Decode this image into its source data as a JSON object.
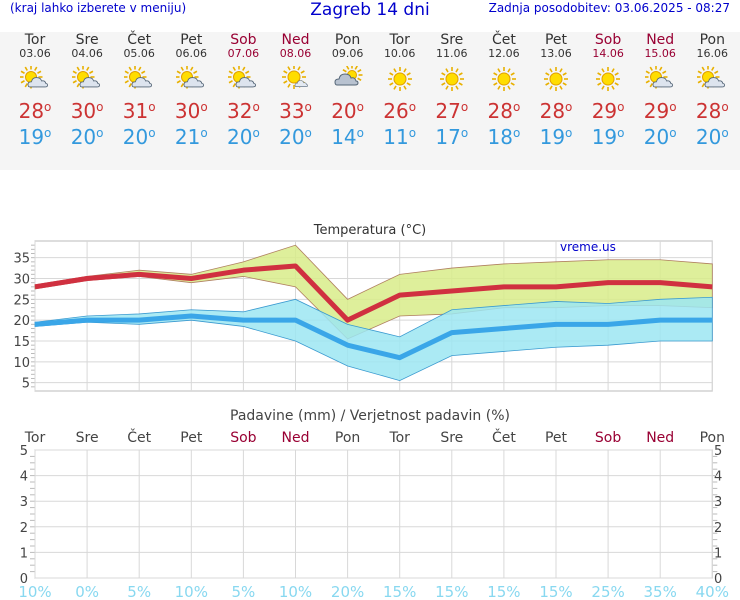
{
  "header": {
    "menu_hint": "(kraj lahko izberete v meniju)",
    "title": "Zagreb 14 dni",
    "updated": "Zadnja posodobitev: 03.06.2025 - 08:27"
  },
  "degree_symbol": "o",
  "days": [
    {
      "name": "Tor",
      "date": "03.06",
      "weekend": false,
      "icon": "sun-cloud-icon",
      "max": "28",
      "min": "19"
    },
    {
      "name": "Sre",
      "date": "04.06",
      "weekend": false,
      "icon": "sun-cloud-icon",
      "max": "30",
      "min": "20"
    },
    {
      "name": "Čet",
      "date": "05.06",
      "weekend": false,
      "icon": "sun-cloud-icon",
      "max": "31",
      "min": "20"
    },
    {
      "name": "Pet",
      "date": "06.06",
      "weekend": false,
      "icon": "sun-cloud-icon",
      "max": "30",
      "min": "21"
    },
    {
      "name": "Sob",
      "date": "07.06",
      "weekend": true,
      "icon": "sun-cloud-icon",
      "max": "32",
      "min": "20"
    },
    {
      "name": "Ned",
      "date": "08.06",
      "weekend": true,
      "icon": "sun-small-cloud-icon",
      "max": "33",
      "min": "20"
    },
    {
      "name": "Pon",
      "date": "09.06",
      "weekend": false,
      "icon": "cloud-sun-icon",
      "max": "20",
      "min": "14"
    },
    {
      "name": "Tor",
      "date": "10.06",
      "weekend": false,
      "icon": "sun-icon",
      "max": "26",
      "min": "11"
    },
    {
      "name": "Sre",
      "date": "11.06",
      "weekend": false,
      "icon": "sun-icon",
      "max": "27",
      "min": "17"
    },
    {
      "name": "Čet",
      "date": "12.06",
      "weekend": false,
      "icon": "sun-icon",
      "max": "28",
      "min": "18"
    },
    {
      "name": "Pet",
      "date": "13.06",
      "weekend": false,
      "icon": "sun-icon",
      "max": "28",
      "min": "19"
    },
    {
      "name": "Sob",
      "date": "14.06",
      "weekend": true,
      "icon": "sun-icon",
      "max": "29",
      "min": "19"
    },
    {
      "name": "Ned",
      "date": "15.06",
      "weekend": true,
      "icon": "sun-cloud-icon",
      "max": "29",
      "min": "20"
    },
    {
      "name": "Pon",
      "date": "16.06",
      "weekend": false,
      "icon": "sun-cloud-icon",
      "max": "28",
      "min": "20"
    }
  ],
  "colors": {
    "max_line": "#d03040",
    "min_line": "#3aa6e8",
    "max_band": "#d8ec8a",
    "min_band": "#9ce6f2",
    "weekend": "#990033",
    "precip_prob": "#88d8f0",
    "title_blue": "#0000cc"
  },
  "chart_data": [
    {
      "type": "line",
      "title": "Temperatura (°C)",
      "watermark": "vreme.us",
      "x": [
        "Tor 03.06",
        "Sre 04.06",
        "Čet 05.06",
        "Pet 06.06",
        "Sob 07.06",
        "Ned 08.06",
        "Pon 09.06",
        "Tor 10.06",
        "Sre 11.06",
        "Čet 12.06",
        "Pet 13.06",
        "Sob 14.06",
        "Ned 15.06",
        "Pon 16.06"
      ],
      "ylim": [
        3,
        39
      ],
      "yticks": [
        5,
        10,
        15,
        20,
        25,
        30,
        35
      ],
      "grid": true,
      "series": [
        {
          "values": [
            28,
            30,
            31,
            30,
            32,
            33,
            20,
            26,
            27,
            28,
            28,
            29,
            29,
            28
          ]
        },
        {
          "values": [
            19,
            20,
            20,
            21,
            20,
            20,
            14,
            11,
            17,
            18,
            19,
            19,
            20,
            20
          ]
        }
      ],
      "bands": [
        {
          "upper": [
            28.5,
            30.5,
            32,
            31,
            34,
            38,
            25,
            31,
            32.5,
            33.5,
            34,
            34.5,
            34.5,
            33.5
          ],
          "lower": [
            27.5,
            29.5,
            30.5,
            29,
            30.5,
            28,
            15.5,
            21,
            21.5,
            23,
            23,
            23.5,
            23.5,
            23
          ]
        },
        {
          "upper": [
            19.5,
            21,
            21.5,
            22.5,
            22,
            25,
            19,
            16,
            22.5,
            23.5,
            24.5,
            24,
            25,
            25.5
          ],
          "lower": [
            18.5,
            19.5,
            19,
            20,
            18.5,
            15,
            9,
            5.5,
            11.5,
            12.5,
            13.5,
            14,
            15,
            15
          ]
        }
      ]
    },
    {
      "type": "bar",
      "title": "Padavine (mm) / Verjetnost padavin (%)",
      "categories": [
        "Tor",
        "Sre",
        "Čet",
        "Pet",
        "Sob",
        "Ned",
        "Pon",
        "Tor",
        "Sre",
        "Čet",
        "Pet",
        "Sob",
        "Ned",
        "Pon"
      ],
      "weekend": [
        false,
        false,
        false,
        false,
        true,
        true,
        false,
        false,
        false,
        false,
        false,
        true,
        true,
        false
      ],
      "ylim": [
        0,
        5
      ],
      "yticks": [
        0,
        1,
        2,
        3,
        4,
        5
      ],
      "values": [
        0,
        0,
        0,
        0,
        0,
        0,
        0,
        0,
        0,
        0,
        0,
        0,
        0,
        0
      ],
      "probability_labels": [
        "10%",
        "0%",
        "5%",
        "10%",
        "5%",
        "10%",
        "20%",
        "15%",
        "15%",
        "15%",
        "15%",
        "25%",
        "35%",
        "40%"
      ],
      "probability": [
        10,
        0,
        5,
        10,
        5,
        10,
        20,
        15,
        15,
        15,
        15,
        25,
        35,
        40
      ]
    }
  ]
}
